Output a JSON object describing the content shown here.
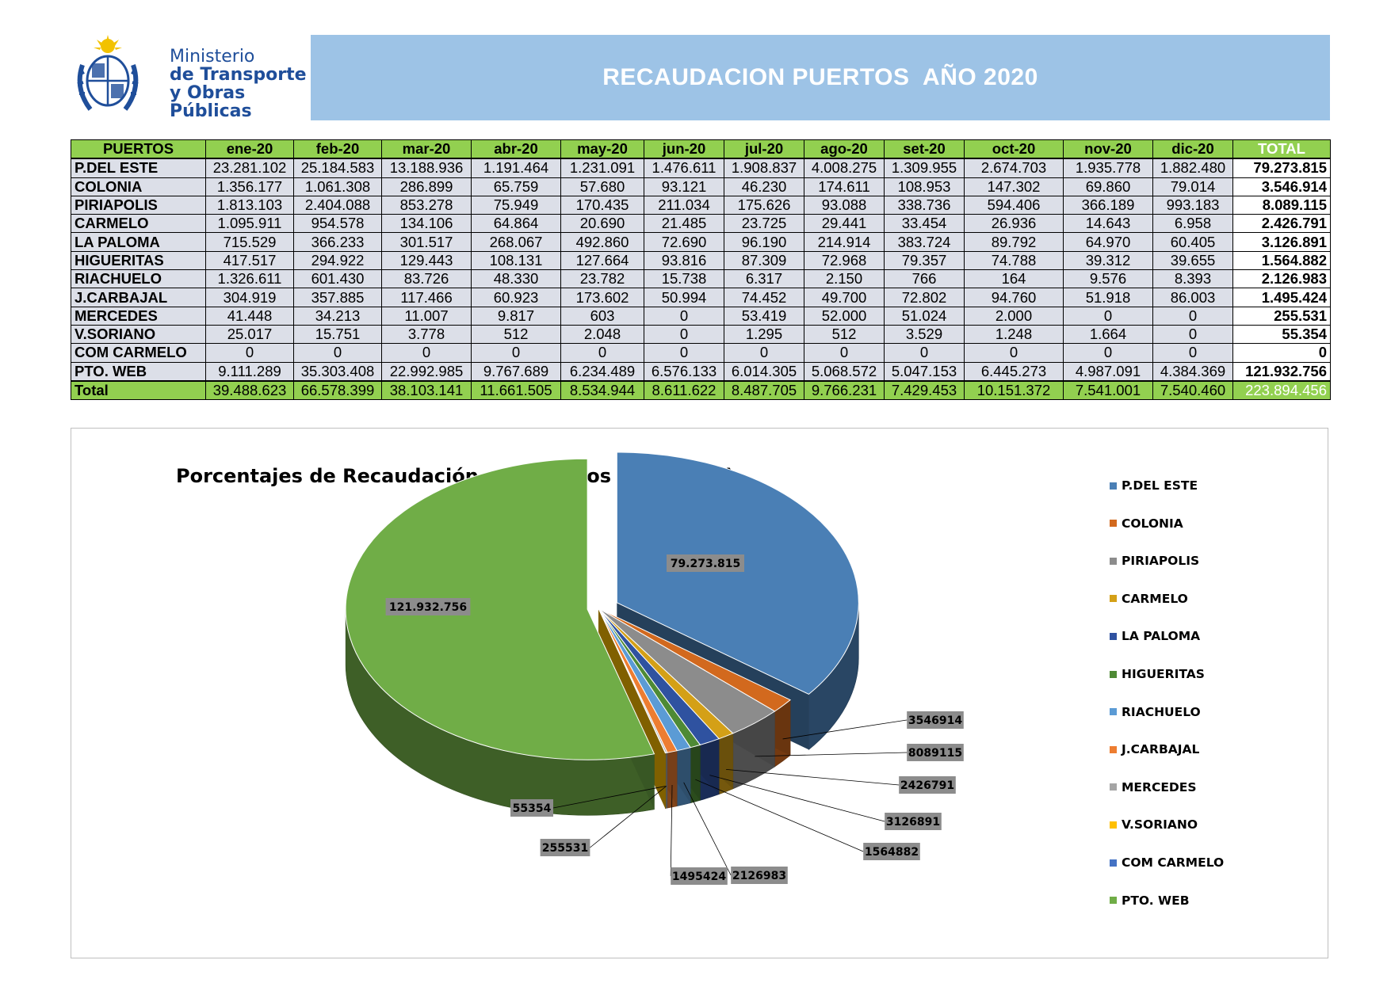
{
  "header": {
    "org_line1": "Ministerio",
    "org_line2": "de Transporte",
    "org_line3": "y Obras Públicas",
    "title": "RECAUDACION PUERTOS  AÑO 2020",
    "logo": "escudo-uruguay"
  },
  "table": {
    "columns": [
      "PUERTOS",
      "ene-20",
      "feb-20",
      "mar-20",
      "abr-20",
      "may-20",
      "jun-20",
      "jul-20",
      "ago-20",
      "set-20",
      "oct-20",
      "nov-20",
      "dic-20",
      "TOTAL"
    ],
    "rows": [
      [
        "P.DEL ESTE",
        "23.281.102",
        "25.184.583",
        "13.188.936",
        "1.191.464",
        "1.231.091",
        "1.476.611",
        "1.908.837",
        "4.008.275",
        "1.309.955",
        "2.674.703",
        "1.935.778",
        "1.882.480",
        "79.273.815"
      ],
      [
        "COLONIA",
        "1.356.177",
        "1.061.308",
        "286.899",
        "65.759",
        "57.680",
        "93.121",
        "46.230",
        "174.611",
        "108.953",
        "147.302",
        "69.860",
        "79.014",
        "3.546.914"
      ],
      [
        "PIRIAPOLIS",
        "1.813.103",
        "2.404.088",
        "853.278",
        "75.949",
        "170.435",
        "211.034",
        "175.626",
        "93.088",
        "338.736",
        "594.406",
        "366.189",
        "993.183",
        "8.089.115"
      ],
      [
        "CARMELO",
        "1.095.911",
        "954.578",
        "134.106",
        "64.864",
        "20.690",
        "21.485",
        "23.725",
        "29.441",
        "33.454",
        "26.936",
        "14.643",
        "6.958",
        "2.426.791"
      ],
      [
        "LA PALOMA",
        "715.529",
        "366.233",
        "301.517",
        "268.067",
        "492.860",
        "72.690",
        "96.190",
        "214.914",
        "383.724",
        "89.792",
        "64.970",
        "60.405",
        "3.126.891"
      ],
      [
        "HIGUERITAS",
        "417.517",
        "294.922",
        "129.443",
        "108.131",
        "127.664",
        "93.816",
        "87.309",
        "72.968",
        "79.357",
        "74.788",
        "39.312",
        "39.655",
        "1.564.882"
      ],
      [
        "RIACHUELO",
        "1.326.611",
        "601.430",
        "83.726",
        "48.330",
        "23.782",
        "15.738",
        "6.317",
        "2.150",
        "766",
        "164",
        "9.576",
        "8.393",
        "2.126.983"
      ],
      [
        "J.CARBAJAL",
        "304.919",
        "357.885",
        "117.466",
        "60.923",
        "173.602",
        "50.994",
        "74.452",
        "49.700",
        "72.802",
        "94.760",
        "51.918",
        "86.003",
        "1.495.424"
      ],
      [
        "MERCEDES",
        "41.448",
        "34.213",
        "11.007",
        "9.817",
        "603",
        "0",
        "53.419",
        "52.000",
        "51.024",
        "2.000",
        "0",
        "0",
        "255.531"
      ],
      [
        "V.SORIANO",
        "25.017",
        "15.751",
        "3.778",
        "512",
        "2.048",
        "0",
        "1.295",
        "512",
        "3.529",
        "1.248",
        "1.664",
        "0",
        "55.354"
      ],
      [
        "COM CARMELO",
        "0",
        "0",
        "0",
        "0",
        "0",
        "0",
        "0",
        "0",
        "0",
        "0",
        "0",
        "0",
        "0"
      ],
      [
        "PTO. WEB",
        "9.111.289",
        "35.303.408",
        "22.992.985",
        "9.767.689",
        "6.234.489",
        "6.576.133",
        "6.014.305",
        "5.068.572",
        "5.047.153",
        "6.445.273",
        "4.987.091",
        "4.384.369",
        "121.932.756"
      ]
    ],
    "total_row": [
      "Total",
      "39.488.623",
      "66.578.399",
      "38.103.141",
      "11.661.505",
      "8.534.944",
      "8.611.622",
      "8.487.705",
      "9.766.231",
      "7.429.453",
      "10.151.372",
      "7.541.001",
      "7.540.460",
      "223.894.456"
    ]
  },
  "chart_data": {
    "type": "pie",
    "title": "Porcentajes de Recaudación por Puertos (54% Web)",
    "legend_position": "right",
    "slices": [
      {
        "name": "P.DEL ESTE",
        "value": 79273815,
        "label": "79.273.815",
        "color": "#4a7fb5"
      },
      {
        "name": "COLONIA",
        "value": 3546914,
        "label": "3546914",
        "color": "#d2691e"
      },
      {
        "name": "PIRIAPOLIS",
        "value": 8089115,
        "label": "8089115",
        "color": "#8c8c8c"
      },
      {
        "name": "CARMELO",
        "value": 2426791,
        "label": "2426791",
        "color": "#d4a017"
      },
      {
        "name": "LA PALOMA",
        "value": 3126891,
        "label": "3126891",
        "color": "#2f52a0"
      },
      {
        "name": "HIGUERITAS",
        "value": 1564882,
        "label": "1564882",
        "color": "#4e8a35"
      },
      {
        "name": "RIACHUELO",
        "value": 2126983,
        "label": "2126983",
        "color": "#5b9bd5"
      },
      {
        "name": "J.CARBAJAL",
        "value": 1495424,
        "label": "1495424",
        "color": "#ed7d31"
      },
      {
        "name": "MERCEDES",
        "value": 255531,
        "label": "255531",
        "color": "#a5a5a5"
      },
      {
        "name": "V.SORIANO",
        "value": 55354,
        "label": "55354",
        "color": "#ffc000"
      },
      {
        "name": "COM CARMELO",
        "value": 0,
        "label": "",
        "color": "#4472c4"
      },
      {
        "name": "PTO. WEB",
        "value": 121932756,
        "label": "121.932.756",
        "color": "#70ad47"
      }
    ]
  }
}
